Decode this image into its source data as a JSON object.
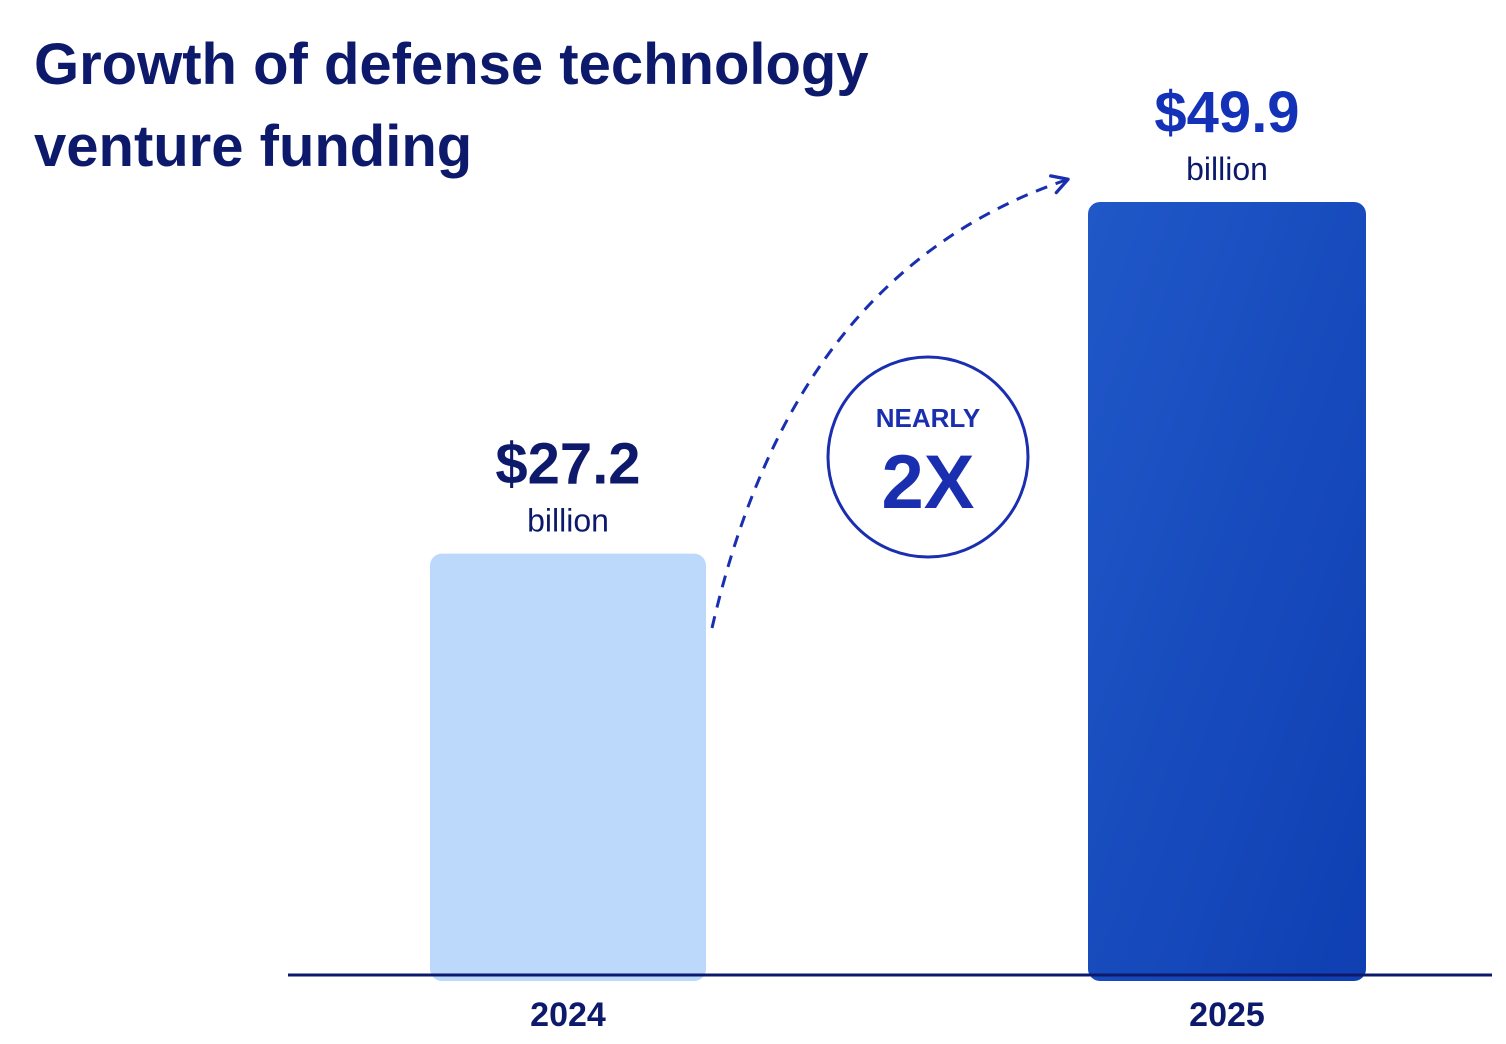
{
  "chart_data": {
    "type": "bar",
    "title_lines": [
      "Growth of defense technology",
      "venture funding"
    ],
    "categories": [
      "2024",
      "2025"
    ],
    "values": [
      27.2,
      49.9
    ],
    "value_labels": [
      "$27.2",
      "$49.9"
    ],
    "unit_label": "billion",
    "bar_colors": [
      "#bcd8fb",
      "#1a4fc4"
    ],
    "value_label_colors": [
      "#0d1a6b",
      "#1432b8"
    ],
    "annotation": {
      "line1": "NEARLY",
      "line2": "2X"
    },
    "xlabel": "",
    "ylabel": "",
    "ylim": [
      0,
      49.9
    ],
    "grid": false,
    "legend": "none"
  }
}
